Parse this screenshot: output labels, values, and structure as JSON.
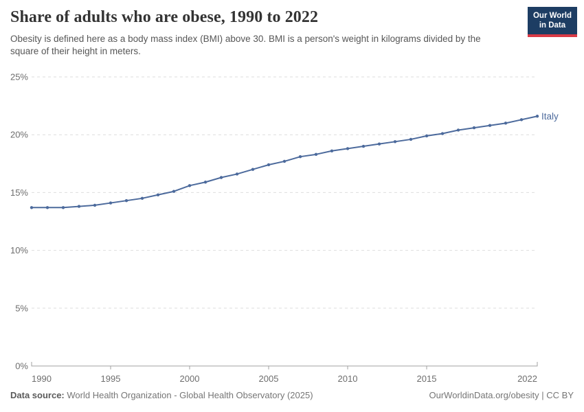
{
  "header": {
    "title": "Share of adults who are obese, 1990 to 2022",
    "subtitle": "Obesity is defined here as a body mass index (BMI) above 30. BMI is a person's weight in kilograms divided by the square of their height in meters.",
    "logo": {
      "line1": "Our World",
      "line2": "in Data",
      "bg_color": "#1d3d63",
      "accent_color": "#d93a46"
    }
  },
  "chart_data": {
    "type": "line",
    "title": "Share of adults who are obese, 1990 to 2022",
    "xlabel": "",
    "ylabel": "",
    "xlim": [
      1990,
      2022
    ],
    "ylim": [
      0,
      25
    ],
    "grid": "horizontal-dashed",
    "legend_position": "end-of-line-label",
    "x": [
      1990,
      1991,
      1992,
      1993,
      1994,
      1995,
      1996,
      1997,
      1998,
      1999,
      2000,
      2001,
      2002,
      2003,
      2004,
      2005,
      2006,
      2007,
      2008,
      2009,
      2010,
      2011,
      2012,
      2013,
      2014,
      2015,
      2016,
      2017,
      2018,
      2019,
      2020,
      2021,
      2022
    ],
    "series": [
      {
        "name": "Italy",
        "color": "#4c6a9c",
        "values": [
          13.7,
          13.7,
          13.7,
          13.8,
          13.9,
          14.1,
          14.3,
          14.5,
          14.8,
          15.1,
          15.6,
          15.9,
          16.3,
          16.6,
          17.0,
          17.4,
          17.7,
          18.1,
          18.3,
          18.6,
          18.8,
          19.0,
          19.2,
          19.4,
          19.6,
          19.9,
          20.1,
          20.4,
          20.6,
          20.8,
          21.0,
          21.3,
          21.6
        ]
      }
    ],
    "xticks": [
      {
        "value": 1990,
        "label": "1990"
      },
      {
        "value": 1995,
        "label": "1995"
      },
      {
        "value": 2000,
        "label": "2000"
      },
      {
        "value": 2005,
        "label": "2005"
      },
      {
        "value": 2010,
        "label": "2010"
      },
      {
        "value": 2015,
        "label": "2015"
      },
      {
        "value": 2022,
        "label": "2022"
      }
    ],
    "yticks": [
      {
        "value": 0,
        "label": "0%"
      },
      {
        "value": 5,
        "label": "5%"
      },
      {
        "value": 10,
        "label": "10%"
      },
      {
        "value": 15,
        "label": "15%"
      },
      {
        "value": 20,
        "label": "20%"
      },
      {
        "value": 25,
        "label": "25%"
      }
    ],
    "colors": {
      "gridline": "#dedede",
      "axis": "#a1a1a1",
      "tick_label": "#6d6d6d"
    }
  },
  "footer": {
    "datasource_label": "Data source:",
    "datasource_value": "World Health Organization - Global Health Observatory (2025)",
    "credit": "OurWorldinData.org/obesity | CC BY"
  }
}
